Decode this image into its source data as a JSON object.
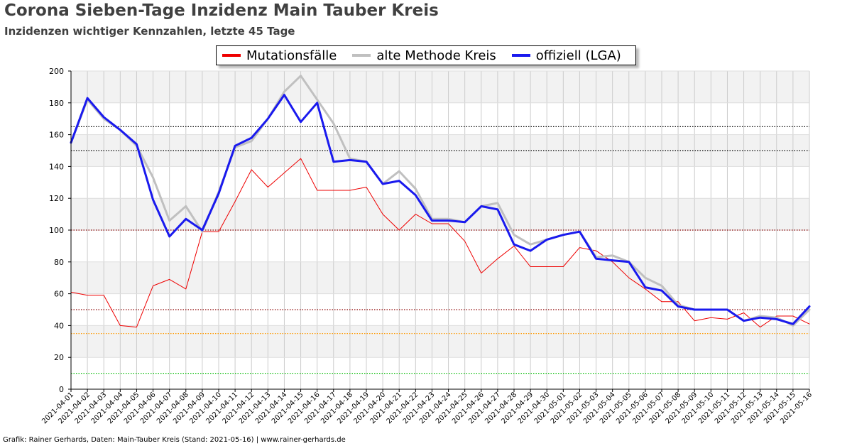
{
  "header": {
    "title": "Corona Sieben-Tage Inzidenz Main Tauber Kreis",
    "subtitle": "Inzidenzen wichtiger Kennzahlen, letzte 45 Tage"
  },
  "footer": {
    "credit": "Grafik: Rainer Gerhards, Daten: Main-Tauber Kreis (Stand: 2021-05-16) | www.rainer-gerhards.de"
  },
  "colors": {
    "mutation": "#ee0000",
    "old_method": "#c0c0c0",
    "official": "#1a1aee"
  },
  "chart_data": {
    "type": "line",
    "title": "Corona Sieben-Tage Inzidenz Main Tauber Kreis",
    "subtitle": "Inzidenzen wichtiger Kennzahlen, letzte 45 Tage",
    "xlabel": "",
    "ylabel": "",
    "ylim": [
      0,
      200
    ],
    "yticks": [
      0,
      20,
      40,
      60,
      80,
      100,
      120,
      140,
      160,
      180,
      200
    ],
    "grid": true,
    "legend_position": "top-center",
    "categories": [
      "2021-04-01",
      "2021-04-02",
      "2021-04-03",
      "2021-04-04",
      "2021-04-05",
      "2021-04-06",
      "2021-04-07",
      "2021-04-08",
      "2021-04-09",
      "2021-04-10",
      "2021-04-11",
      "2021-04-12",
      "2021-04-13",
      "2021-04-14",
      "2021-04-15",
      "2021-04-16",
      "2021-04-17",
      "2021-04-18",
      "2021-04-19",
      "2021-04-20",
      "2021-04-21",
      "2021-04-22",
      "2021-04-23",
      "2021-04-24",
      "2021-04-25",
      "2021-04-26",
      "2021-04-27",
      "2021-04-28",
      "2021-04-29",
      "2021-04-30",
      "2021-05-01",
      "2021-05-02",
      "2021-05-03",
      "2021-05-04",
      "2021-05-05",
      "2021-05-06",
      "2021-05-07",
      "2021-05-08",
      "2021-05-09",
      "2021-05-10",
      "2021-05-11",
      "2021-05-12",
      "2021-05-13",
      "2021-05-14",
      "2021-05-15",
      "2021-05-16"
    ],
    "reference_lines": [
      {
        "value": 165,
        "color": "#000000"
      },
      {
        "value": 150,
        "color": "#000000"
      },
      {
        "value": 100,
        "color": "#8b0000"
      },
      {
        "value": 50,
        "color": "#8b0000"
      },
      {
        "value": 35,
        "color": "#ff9900"
      },
      {
        "value": 10,
        "color": "#00bb00"
      }
    ],
    "series": [
      {
        "name": "Mutationsfälle",
        "color": "#ee0000",
        "width": 1,
        "values": [
          61,
          59,
          59,
          40,
          39,
          65,
          69,
          63,
          99,
          99,
          118,
          138,
          127,
          136,
          145,
          125,
          125,
          125,
          127,
          110,
          100,
          110,
          104,
          104,
          93,
          73,
          82,
          90,
          77,
          77,
          77,
          89,
          87,
          80,
          70,
          63,
          55,
          55,
          43,
          45,
          44,
          48,
          39,
          46,
          46,
          41
        ]
      },
      {
        "name": "alte Methode Kreis",
        "color": "#c0c0c0",
        "width": 3,
        "values": [
          155,
          182,
          170,
          163,
          153,
          133,
          106,
          115,
          99,
          124,
          152,
          156,
          170,
          187,
          197,
          182,
          167,
          145,
          143,
          129,
          137,
          126,
          107,
          107,
          105,
          115,
          117,
          97,
          91,
          94,
          97,
          99,
          83,
          84,
          80,
          70,
          65,
          53,
          50,
          50,
          50,
          43,
          46,
          45,
          40,
          50
        ]
      },
      {
        "name": "offiziell (LGA)",
        "color": "#1a1aee",
        "width": 3,
        "values": [
          155,
          183,
          171,
          163,
          154,
          119,
          96,
          107,
          100,
          123,
          153,
          158,
          170,
          185,
          168,
          180,
          143,
          144,
          143,
          129,
          131,
          122,
          106,
          106,
          105,
          115,
          113,
          91,
          87,
          94,
          97,
          99,
          82,
          81,
          80,
          64,
          62,
          52,
          50,
          50,
          50,
          43,
          45,
          44,
          41,
          52
        ]
      }
    ]
  }
}
